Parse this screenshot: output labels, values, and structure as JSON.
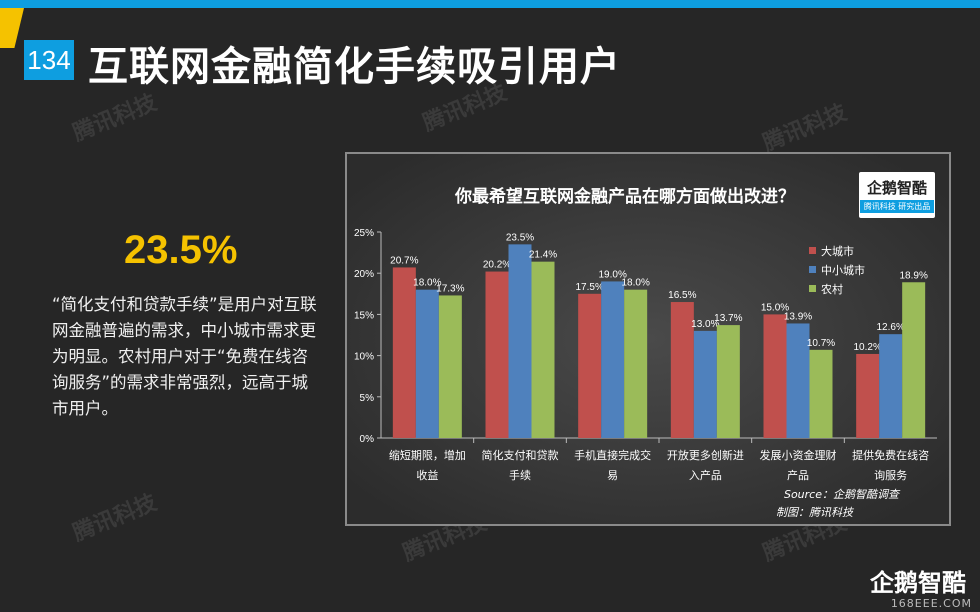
{
  "page_number": "134",
  "title": "互联网金融简化手续吸引用户",
  "highlight_stat": "23.5%",
  "description": "“简化支付和贷款手续”是用户对互联网金融普遍的需求，中小城市需求更为明显。农村用户对于“免费在线咨询服务”的需求非常强烈，远高于城市用户。",
  "watermark": "腾讯科技",
  "logo": {
    "name": "企鹅智酷",
    "tag": "腾讯科技 研究出品"
  },
  "footer": {
    "logo": "企鹅智酷",
    "url": "168EEE.COM"
  },
  "colors": {
    "big_city": "#c0504d",
    "small_city": "#4f81bd",
    "rural": "#9bbb59",
    "accent": "#0e9ee0",
    "highlight": "#f5c200"
  },
  "chart_data": {
    "type": "bar",
    "title": "你最希望互联网金融产品在哪方面做出改进？",
    "categories": [
      "缩短期限，增加收益",
      "简化支付和贷款手续",
      "手机直接完成交易",
      "开放更多创新进入产品",
      "发展小资金理财产品",
      "提供免费在线咨询服务"
    ],
    "category_lines": [
      [
        "缩短期限，增加",
        "收益"
      ],
      [
        "简化支付和贷款",
        "手续"
      ],
      [
        "手机直接完成交",
        "易"
      ],
      [
        "开放更多创新进",
        "入产品"
      ],
      [
        "发展小资金理财",
        "产品"
      ],
      [
        "提供免费在线咨",
        "询服务"
      ]
    ],
    "series": [
      {
        "name": "大城市",
        "values": [
          20.7,
          20.2,
          17.5,
          16.5,
          15.0,
          10.2
        ],
        "labels": [
          "20.7%",
          "20.2%",
          "17.5%",
          "16.5%",
          "15.0%",
          "10.2%"
        ]
      },
      {
        "name": "中小城市",
        "values": [
          18.0,
          23.5,
          19.0,
          13.0,
          13.9,
          12.6
        ],
        "labels": [
          "18.0%",
          "23.5%",
          "19.0%",
          "13.0%",
          "13.9%",
          "12.6%"
        ]
      },
      {
        "name": "农村",
        "values": [
          17.3,
          21.4,
          18.0,
          13.7,
          10.7,
          18.9
        ],
        "labels": [
          "17.3%",
          "21.4%",
          "18.0%",
          "13.7%",
          "10.7%",
          "18.9%"
        ]
      }
    ],
    "ylim": [
      0,
      25
    ],
    "yticks": [
      "0%",
      "5%",
      "10%",
      "15%",
      "20%",
      "25%"
    ],
    "ytick_values": [
      0,
      5,
      10,
      15,
      20,
      25
    ],
    "legend_position": "top-right",
    "source": "Source：企鹅智酷调查",
    "maker": "制图：腾讯科技"
  }
}
